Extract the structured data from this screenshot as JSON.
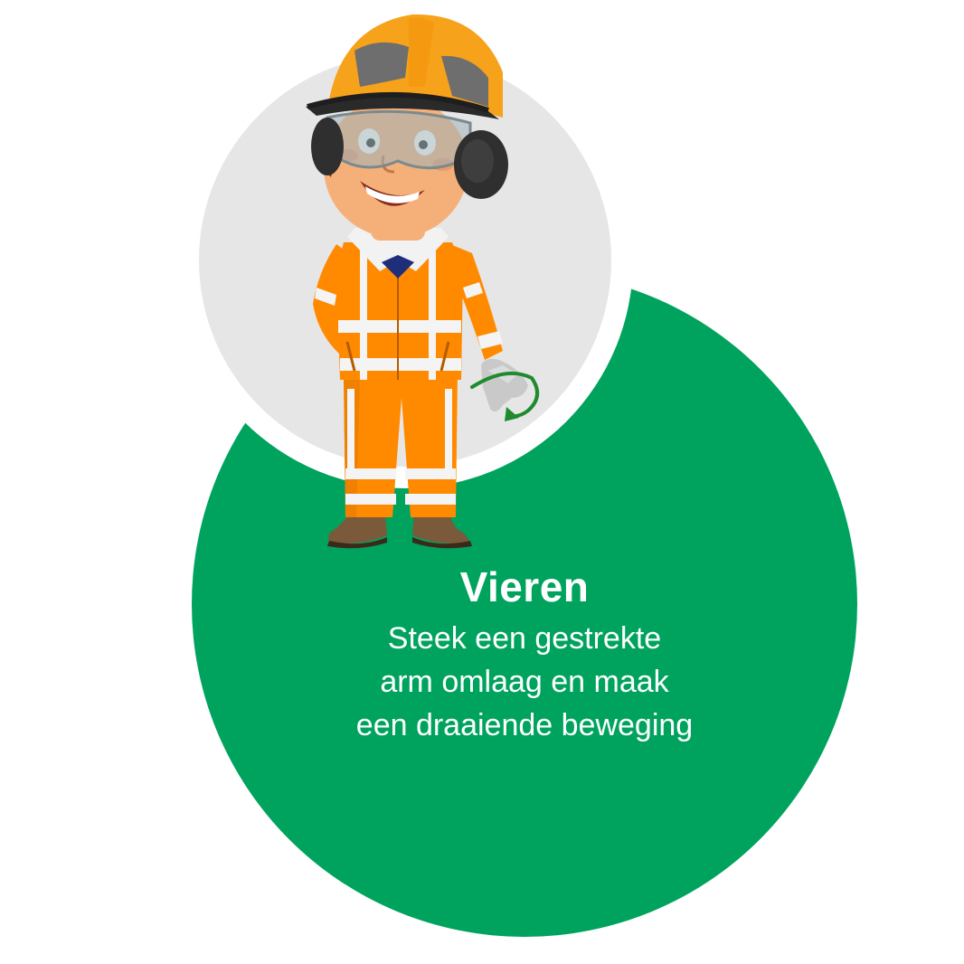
{
  "instruction": {
    "title": "Vieren",
    "description_lines": [
      "Steek een gestrekte",
      "arm omlaag en maak",
      "een draaiende beweging"
    ]
  },
  "colors": {
    "green_circle": "#00A35E",
    "grey_circle": "#E6E6E6",
    "suit_orange": "#FF8A00",
    "reflective_stripe": "#F4F4F4",
    "helmet_orange": "#F7A21B",
    "arrow_green": "#1F8A2E"
  },
  "icons": {
    "character": "construction-worker-illustration",
    "gesture": "rotating-arrow-icon"
  }
}
